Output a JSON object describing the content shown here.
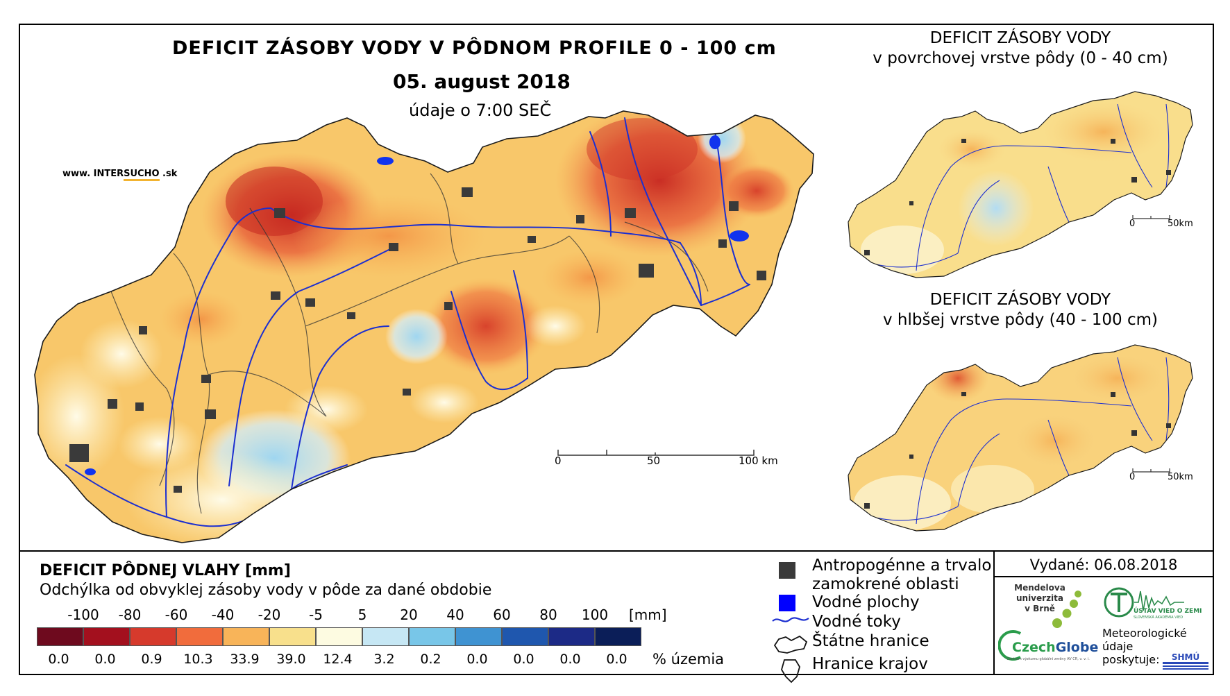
{
  "main_map": {
    "title": "DEFICIT ZÁSOBY VODY V PÔDNOM PROFILE 0 - 100 cm",
    "date": "05. august 2018",
    "data_time": "údaje o 7:00 SEČ",
    "website_prefix": "www. INTER",
    "website_highlight": "SUCHO",
    "website_suffix": " .sk",
    "scale_labels": [
      "0",
      "50",
      "100 km"
    ]
  },
  "inset_top": {
    "title_line1": "DEFICIT ZÁSOBY VODY",
    "title_line2": "v povrchovej vrstve pôdy (0 - 40 cm)",
    "scale_labels": [
      "0",
      "50km"
    ]
  },
  "inset_bottom": {
    "title_line1": "DEFICIT ZÁSOBY VODY",
    "title_line2": "v hlbšej vrstve pôdy (40 - 100 cm)",
    "scale_labels": [
      "0",
      "50km"
    ]
  },
  "legend": {
    "title": "DEFICIT PÔDNEJ VLAHY [mm]",
    "subtitle": "Odchýlka od obvyklej zásoby vody v pôde za dané obdobie",
    "ticks": [
      "-100",
      "-80",
      "-60",
      "-40",
      "-20",
      "-5",
      "5",
      "20",
      "40",
      "60",
      "80",
      "100"
    ],
    "unit": "[mm]",
    "colors": [
      "#6e0a1e",
      "#a3101e",
      "#d63a2c",
      "#f16c3c",
      "#f8b459",
      "#f8e08c",
      "#fdfbe1",
      "#c6e7f4",
      "#78c6e8",
      "#3f93d2",
      "#1f57ae",
      "#1c2a86",
      "#0b1e58"
    ],
    "percentages": [
      "0.0",
      "0.0",
      "0.9",
      "10.3",
      "33.9",
      "39.0",
      "12.4",
      "3.2",
      "0.2",
      "0.0",
      "0.0",
      "0.0",
      "0.0"
    ],
    "percent_unit": "% územia"
  },
  "symbols": {
    "anthropogenic_line1": "Antropogénne a trvalo",
    "anthropogenic_line2": "zamokrené oblasti",
    "water_bodies": "Vodné plochy",
    "rivers": "Vodné toky",
    "state_border": "Štátne hranice",
    "regional_border": "Hranice krajov"
  },
  "credits": {
    "issued": "Vydané: 06.08.2018",
    "mendel_line1": "Mendelova",
    "mendel_line2": "univerzita",
    "mendel_line3": "v Brně",
    "czechglobe_a": "Czech",
    "czechglobe_b": "Globe",
    "czechglobe_tag": "Centrum výzkumu globální změny AV ČR, v. v. i.",
    "uvoz_name": "ÚSTAV VIED O ZEMI",
    "uvoz_tag": "SLOVENSKÁ AKADÉMIA VIED",
    "provided_line1": "Meteorologické",
    "provided_line2": "údaje",
    "provided_line3": "poskytuje:",
    "shmu": "SHMÚ"
  }
}
